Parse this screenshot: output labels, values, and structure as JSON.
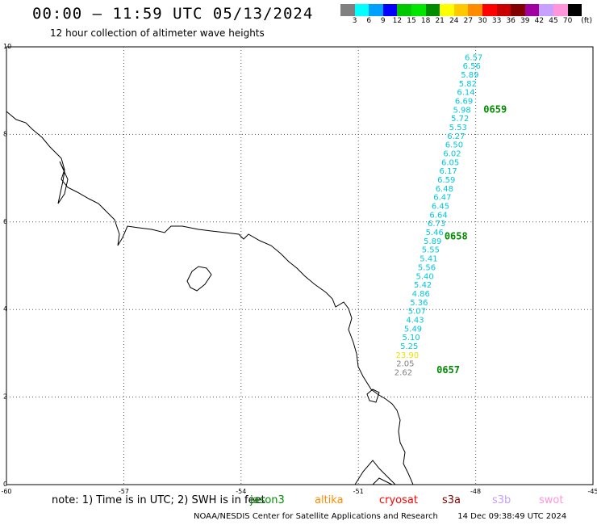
{
  "header": {
    "title": "00:00 – 11:59 UTC 05/13/2024",
    "subtitle": "12 hour collection of altimeter wave heights"
  },
  "colorbar": {
    "colors": [
      "#808080",
      "#00ffff",
      "#00a0ff",
      "#0000ff",
      "#00c800",
      "#00e600",
      "#008c00",
      "#ffff00",
      "#ffc800",
      "#ff8c00",
      "#ff0000",
      "#c80000",
      "#820000",
      "#a000a0",
      "#c8a0ff",
      "#ff96dc",
      "#000000"
    ],
    "labels": [
      "3",
      "6",
      "9",
      "12",
      "15",
      "18",
      "21",
      "24",
      "27",
      "30",
      "33",
      "36",
      "39",
      "42",
      "45",
      "70",
      "(ft)"
    ]
  },
  "map": {
    "x_ticks": [
      "-60",
      "-57",
      "-54",
      "-51",
      "-48",
      "-45"
    ],
    "y_ticks": [
      "0",
      "2",
      "4",
      "6",
      "8",
      "10"
    ],
    "x_range": [
      -60,
      -45
    ],
    "y_range": [
      0,
      10
    ],
    "track": {
      "color_cyan": "#00c8dc",
      "points": [
        {
          "lon": -48.05,
          "lat": 9.7,
          "v": "6.57",
          "c": "#00c8dc"
        },
        {
          "lon": -48.1,
          "lat": 9.5,
          "v": "6.56",
          "c": "#00c8dc"
        },
        {
          "lon": -48.15,
          "lat": 9.3,
          "v": "5.89",
          "c": "#00c8dc"
        },
        {
          "lon": -48.2,
          "lat": 9.1,
          "v": "5.82",
          "c": "#00c8dc"
        },
        {
          "lon": -48.25,
          "lat": 8.9,
          "v": "6.14",
          "c": "#00c8dc"
        },
        {
          "lon": -48.3,
          "lat": 8.7,
          "v": "6.69",
          "c": "#00c8dc"
        },
        {
          "lon": -48.35,
          "lat": 8.5,
          "v": "5.98",
          "c": "#00c8dc"
        },
        {
          "lon": -48.4,
          "lat": 8.3,
          "v": "5.72",
          "c": "#00c8dc"
        },
        {
          "lon": -48.45,
          "lat": 8.1,
          "v": "5.53",
          "c": "#00c8dc"
        },
        {
          "lon": -48.5,
          "lat": 7.9,
          "v": "6.27",
          "c": "#00c8dc"
        },
        {
          "lon": -48.55,
          "lat": 7.7,
          "v": "6.50",
          "c": "#00c8dc"
        },
        {
          "lon": -48.6,
          "lat": 7.5,
          "v": "6.02",
          "c": "#00c8dc"
        },
        {
          "lon": -48.65,
          "lat": 7.3,
          "v": "6.05",
          "c": "#00c8dc"
        },
        {
          "lon": -48.7,
          "lat": 7.1,
          "v": "6.17",
          "c": "#00c8dc"
        },
        {
          "lon": -48.75,
          "lat": 6.9,
          "v": "6.59",
          "c": "#00c8dc"
        },
        {
          "lon": -48.8,
          "lat": 6.7,
          "v": "6.48",
          "c": "#00c8dc"
        },
        {
          "lon": -48.85,
          "lat": 6.5,
          "v": "6.47",
          "c": "#00c8dc"
        },
        {
          "lon": -48.9,
          "lat": 6.3,
          "v": "6.45",
          "c": "#00c8dc"
        },
        {
          "lon": -48.95,
          "lat": 6.1,
          "v": "6.64",
          "c": "#00c8dc"
        },
        {
          "lon": -49.0,
          "lat": 5.9,
          "v": "6.73",
          "c": "#00c8dc"
        },
        {
          "lon": -49.05,
          "lat": 5.7,
          "v": "5.46",
          "c": "#00c8dc"
        },
        {
          "lon": -49.1,
          "lat": 5.5,
          "v": "5.89",
          "c": "#00c8dc"
        },
        {
          "lon": -49.15,
          "lat": 5.3,
          "v": "5.55",
          "c": "#00c8dc"
        },
        {
          "lon": -49.2,
          "lat": 5.1,
          "v": "5.41",
          "c": "#00c8dc"
        },
        {
          "lon": -49.25,
          "lat": 4.9,
          "v": "5.56",
          "c": "#00c8dc"
        },
        {
          "lon": -49.3,
          "lat": 4.7,
          "v": "5.40",
          "c": "#00c8dc"
        },
        {
          "lon": -49.35,
          "lat": 4.5,
          "v": "5.42",
          "c": "#00c8dc"
        },
        {
          "lon": -49.4,
          "lat": 4.3,
          "v": "4.86",
          "c": "#00c8dc"
        },
        {
          "lon": -49.45,
          "lat": 4.1,
          "v": "5.36",
          "c": "#00c8dc"
        },
        {
          "lon": -49.5,
          "lat": 3.9,
          "v": "5.07",
          "c": "#00c8dc"
        },
        {
          "lon": -49.55,
          "lat": 3.7,
          "v": "4.43",
          "c": "#00c8dc"
        },
        {
          "lon": -49.6,
          "lat": 3.5,
          "v": "5.49",
          "c": "#00c8dc"
        },
        {
          "lon": -49.65,
          "lat": 3.3,
          "v": "5.10",
          "c": "#00c8dc"
        },
        {
          "lon": -49.7,
          "lat": 3.1,
          "v": "5.25",
          "c": "#00c8dc"
        },
        {
          "lon": -49.75,
          "lat": 2.9,
          "v": "23.90",
          "c": "#e6e600"
        },
        {
          "lon": -49.8,
          "lat": 2.7,
          "v": "2.05",
          "c": "#808080"
        },
        {
          "lon": -49.85,
          "lat": 2.5,
          "v": "2.62",
          "c": "#808080"
        }
      ],
      "time_labels": [
        {
          "lon": -47.8,
          "lat": 8.5,
          "t": "0659"
        },
        {
          "lon": -48.8,
          "lat": 5.6,
          "t": "0658"
        },
        {
          "lon": -49.0,
          "lat": 2.55,
          "t": "0657"
        }
      ]
    }
  },
  "legend": {
    "note": "note:  1) Time is in UTC; 2) SWH is in feet",
    "satellites": [
      {
        "name": "jason3",
        "color": "#008c00"
      },
      {
        "name": "altika",
        "color": "#ff8c00"
      },
      {
        "name": "cryosat",
        "color": "#ff0000"
      },
      {
        "name": "s3a",
        "color": "#820000"
      },
      {
        "name": "s3b",
        "color": "#c8a0ff"
      },
      {
        "name": "swot",
        "color": "#ff96dc"
      }
    ]
  },
  "footer": {
    "credit": "NOAA/NESDIS Center for Satellite Applications and Research",
    "timestamp": "14 Dec 09:38:49 UTC 2024"
  }
}
